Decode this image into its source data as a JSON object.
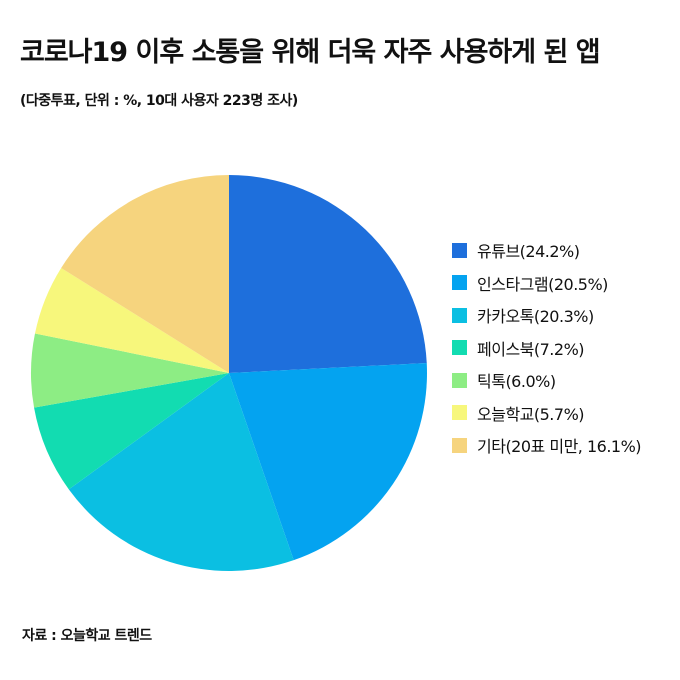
{
  "title": "코로나19 이후 소통을 위해 더욱 자주 사용하게 된 앱",
  "subtitle": "(다중투표, 단위 : %, 10대 사용자 223명 조사)",
  "source": "자료 : 오늘학교 트렌드",
  "chart_data": {
    "type": "pie",
    "title": "코로나19 이후 소통을 위해 더욱 자주 사용하게 된 앱",
    "categories": [
      "유튜브",
      "인스타그램",
      "카카오톡",
      "페이스북",
      "틱톡",
      "오늘학교",
      "기타"
    ],
    "values": [
      24.2,
      20.5,
      20.3,
      7.2,
      6.0,
      5.7,
      16.1
    ],
    "colors": [
      "#1e6fdc",
      "#04a3f0",
      "#0bbfe2",
      "#12dcb1",
      "#8ded84",
      "#f7f77c",
      "#f6d47e"
    ],
    "legend_labels": [
      "유튜브(24.2%)",
      "인스타그램(20.5%)",
      "카카오톡(20.3%)",
      "페이스북(7.2%)",
      "틱톡(6.0%)",
      "오늘학교(5.7%)",
      "기타(20표 미만, 16.1%)"
    ],
    "legend_position": "right",
    "start_angle": "12 o'clock",
    "direction": "clockwise"
  }
}
